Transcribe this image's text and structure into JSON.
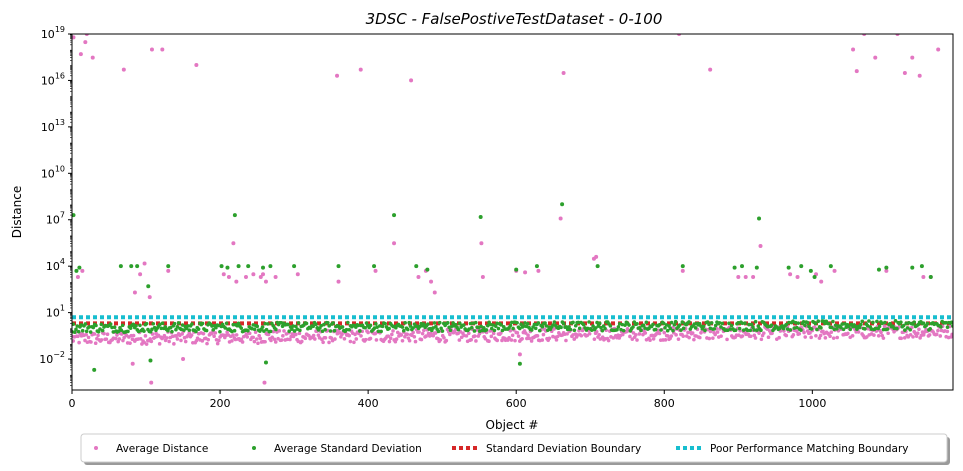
{
  "chart_data": {
    "type": "scatter",
    "title": "3DSC - FalsePostiveTestDataset - 0-100",
    "xlabel": "Object #",
    "ylabel": "Distance",
    "xlim": [
      0,
      1190
    ],
    "ylim_log10": [
      -4,
      19
    ],
    "y_scale": "log",
    "xticks": [
      0,
      200,
      400,
      600,
      800,
      1000
    ],
    "xtick_labels": [
      "0",
      "200",
      "400",
      "600",
      "800",
      "1000"
    ],
    "yticks_log10": [
      -2,
      1,
      4,
      7,
      10,
      13,
      16,
      19
    ],
    "ytick_bases": [
      "10",
      "10",
      "10",
      "10",
      "10",
      "10",
      "10",
      "10"
    ],
    "ytick_exponents": [
      "−2",
      "1",
      "4",
      "7",
      "10",
      "13",
      "16",
      "19"
    ],
    "grid": false,
    "legend_position": "bottom-center-outside",
    "legend": [
      {
        "label": "Average Distance",
        "color": "#e377c2",
        "style": "dot"
      },
      {
        "label": "Average Standard Deviation",
        "color": "#2ca02c",
        "style": "dot"
      },
      {
        "label": "Standard Deviation Boundary",
        "color": "#d62728",
        "style": "dotted-line"
      },
      {
        "label": "Poor Performance Matching Boundary",
        "color": "#17becf",
        "style": "dotted-line"
      }
    ],
    "boundaries": {
      "standard_deviation": 2.0,
      "poor_performance": 5.0
    },
    "series": [
      {
        "name": "Average Distance",
        "color": "#e377c2",
        "points": [
          [
            2,
            6e+18
          ],
          [
            8,
            2000.0
          ],
          [
            12,
            5e+17
          ],
          [
            14,
            5000.0
          ],
          [
            20,
            1e+19
          ],
          [
            18,
            3e+18
          ],
          [
            28,
            3e+17
          ],
          [
            70,
            5e+16
          ],
          [
            82,
            0.005
          ],
          [
            85,
            200.0
          ],
          [
            92,
            3000.0
          ],
          [
            98,
            15000.0
          ],
          [
            105,
            100.0
          ],
          [
            107,
            0.0003
          ],
          [
            108,
            1e+18
          ],
          [
            122,
            1e+18
          ],
          [
            130,
            5000.0
          ],
          [
            150,
            0.01
          ],
          [
            168,
            1e+17
          ],
          [
            205,
            3000.0
          ],
          [
            212,
            2000.0
          ],
          [
            218,
            300000.0
          ],
          [
            222,
            1000.0
          ],
          [
            235,
            2000.0
          ],
          [
            245,
            3000.0
          ],
          [
            255,
            2000.0
          ],
          [
            258,
            3000.0
          ],
          [
            260,
            0.0003
          ],
          [
            262,
            1000.0
          ],
          [
            275,
            2000.0
          ],
          [
            305,
            3000.0
          ],
          [
            358,
            2e+16
          ],
          [
            360,
            1000.0
          ],
          [
            390,
            5e+16
          ],
          [
            410,
            5000.0
          ],
          [
            435,
            300000.0
          ],
          [
            458,
            1e+16
          ],
          [
            468,
            2000.0
          ],
          [
            478,
            5000.0
          ],
          [
            485,
            1000.0
          ],
          [
            490,
            200.0
          ],
          [
            553,
            300000.0
          ],
          [
            555,
            2000.0
          ],
          [
            600,
            5000.0
          ],
          [
            605,
            0.02
          ],
          [
            612,
            4000.0
          ],
          [
            630,
            5000.0
          ],
          [
            660,
            12000000.0
          ],
          [
            664,
            3e+16
          ],
          [
            705,
            30000.0
          ],
          [
            708,
            40000.0
          ],
          [
            820,
            1e+19
          ],
          [
            825,
            5000.0
          ],
          [
            862,
            5e+16
          ],
          [
            900,
            2000.0
          ],
          [
            910,
            2000.0
          ],
          [
            920,
            2000.0
          ],
          [
            930,
            200000.0
          ],
          [
            970,
            3000.0
          ],
          [
            980,
            2000.0
          ],
          [
            1005,
            3000.0
          ],
          [
            1012,
            1000.0
          ],
          [
            1030,
            5000.0
          ],
          [
            1055,
            1e+18
          ],
          [
            1060,
            4e+16
          ],
          [
            1070,
            1e+19
          ],
          [
            1085,
            3e+17
          ],
          [
            1100,
            5000.0
          ],
          [
            1115,
            1e+19
          ],
          [
            1125,
            3e+16
          ],
          [
            1135,
            3e+17
          ],
          [
            1145,
            2e+16
          ],
          [
            1150,
            2000.0
          ],
          [
            1160,
            2000.0
          ],
          [
            1170,
            1e+18
          ]
        ]
      },
      {
        "name": "Average Standard Deviation",
        "color": "#2ca02c",
        "points": [
          [
            2,
            20000000.0
          ],
          [
            6,
            5000.0
          ],
          [
            10,
            8000.0
          ],
          [
            30,
            0.002
          ],
          [
            66,
            10000.0
          ],
          [
            80,
            10000.0
          ],
          [
            88,
            10000.0
          ],
          [
            103,
            500.0
          ],
          [
            106,
            0.008
          ],
          [
            130,
            10000.0
          ],
          [
            202,
            10000.0
          ],
          [
            210,
            8000.0
          ],
          [
            220,
            20000000.0
          ],
          [
            225,
            10000.0
          ],
          [
            238,
            10000.0
          ],
          [
            258,
            8000.0
          ],
          [
            262,
            0.006
          ],
          [
            268,
            10000.0
          ],
          [
            300,
            10000.0
          ],
          [
            360,
            10000.0
          ],
          [
            408,
            10000.0
          ],
          [
            435,
            20000000.0
          ],
          [
            465,
            10000.0
          ],
          [
            480,
            6000.0
          ],
          [
            552,
            15000000.0
          ],
          [
            600,
            6000.0
          ],
          [
            605,
            0.005
          ],
          [
            628,
            10000.0
          ],
          [
            662,
            100000000.0
          ],
          [
            710,
            10000.0
          ],
          [
            825,
            10000.0
          ],
          [
            895,
            8000.0
          ],
          [
            905,
            10000.0
          ],
          [
            925,
            8000.0
          ],
          [
            928,
            12000000.0
          ],
          [
            968,
            8000.0
          ],
          [
            985,
            10000.0
          ],
          [
            998,
            5000.0
          ],
          [
            1003,
            2000.0
          ],
          [
            1025,
            10000.0
          ],
          [
            1090,
            6000.0
          ],
          [
            1100,
            8000.0
          ],
          [
            1135,
            8000.0
          ],
          [
            1148,
            10000.0
          ],
          [
            1160,
            2000.0
          ]
        ]
      }
    ],
    "band": {
      "description": "dense cluster of points from x=0 to x=1190",
      "average_distance_range": [
        0.05,
        1.5
      ],
      "average_std_range": [
        0.3,
        3.0
      ]
    }
  }
}
